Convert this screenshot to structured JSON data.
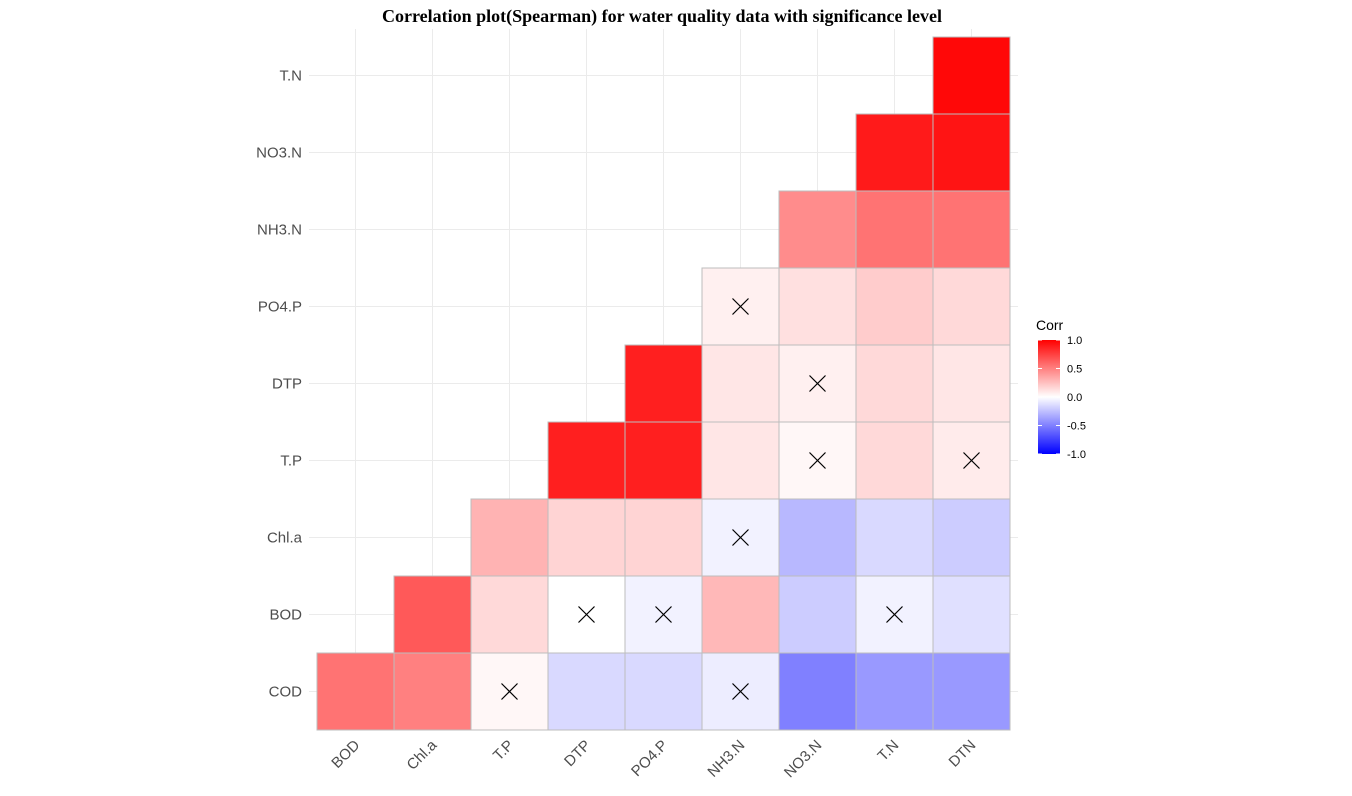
{
  "chart_data": {
    "type": "heatmap",
    "title": "Correlation plot(Spearman) for water quality data with significance level",
    "x_categories": [
      "BOD",
      "Chl.a",
      "T.P",
      "DTP",
      "PO4.P",
      "NH3.N",
      "NO3.N",
      "T.N",
      "DTN"
    ],
    "y_categories": [
      "COD",
      "BOD",
      "Chl.a",
      "T.P",
      "DTP",
      "PO4.P",
      "NH3.N",
      "NO3.N",
      "T.N"
    ],
    "cells": [
      {
        "x": "BOD",
        "y": "COD",
        "value": 0.55,
        "insignificant": false
      },
      {
        "x": "Chl.a",
        "y": "COD",
        "value": 0.5,
        "insignificant": false
      },
      {
        "x": "T.P",
        "y": "COD",
        "value": 0.03,
        "insignificant": true
      },
      {
        "x": "DTP",
        "y": "COD",
        "value": -0.15,
        "insignificant": false
      },
      {
        "x": "PO4.P",
        "y": "COD",
        "value": -0.15,
        "insignificant": false
      },
      {
        "x": "NH3.N",
        "y": "COD",
        "value": -0.07,
        "insignificant": true
      },
      {
        "x": "NO3.N",
        "y": "COD",
        "value": -0.5,
        "insignificant": false
      },
      {
        "x": "T.N",
        "y": "COD",
        "value": -0.4,
        "insignificant": false
      },
      {
        "x": "DTN",
        "y": "COD",
        "value": -0.4,
        "insignificant": false
      },
      {
        "x": "Chl.a",
        "y": "BOD",
        "value": 0.65,
        "insignificant": false
      },
      {
        "x": "T.P",
        "y": "BOD",
        "value": 0.15,
        "insignificant": false
      },
      {
        "x": "DTP",
        "y": "BOD",
        "value": 0.0,
        "insignificant": true
      },
      {
        "x": "PO4.P",
        "y": "BOD",
        "value": -0.05,
        "insignificant": true
      },
      {
        "x": "NH3.N",
        "y": "BOD",
        "value": 0.28,
        "insignificant": false
      },
      {
        "x": "NO3.N",
        "y": "BOD",
        "value": -0.2,
        "insignificant": false
      },
      {
        "x": "T.N",
        "y": "BOD",
        "value": -0.05,
        "insignificant": true
      },
      {
        "x": "DTN",
        "y": "BOD",
        "value": -0.12,
        "insignificant": false
      },
      {
        "x": "T.P",
        "y": "Chl.a",
        "value": 0.3,
        "insignificant": false
      },
      {
        "x": "DTP",
        "y": "Chl.a",
        "value": 0.17,
        "insignificant": false
      },
      {
        "x": "PO4.P",
        "y": "Chl.a",
        "value": 0.17,
        "insignificant": false
      },
      {
        "x": "NH3.N",
        "y": "Chl.a",
        "value": -0.05,
        "insignificant": true
      },
      {
        "x": "NO3.N",
        "y": "Chl.a",
        "value": -0.28,
        "insignificant": false
      },
      {
        "x": "T.N",
        "y": "Chl.a",
        "value": -0.15,
        "insignificant": false
      },
      {
        "x": "DTN",
        "y": "Chl.a",
        "value": -0.2,
        "insignificant": false
      },
      {
        "x": "DTP",
        "y": "T.P",
        "value": 0.88,
        "insignificant": false
      },
      {
        "x": "PO4.P",
        "y": "T.P",
        "value": 0.88,
        "insignificant": false
      },
      {
        "x": "NH3.N",
        "y": "T.P",
        "value": 0.1,
        "insignificant": false
      },
      {
        "x": "NO3.N",
        "y": "T.P",
        "value": 0.03,
        "insignificant": true
      },
      {
        "x": "T.N",
        "y": "T.P",
        "value": 0.15,
        "insignificant": false
      },
      {
        "x": "DTN",
        "y": "T.P",
        "value": 0.08,
        "insignificant": true
      },
      {
        "x": "PO4.P",
        "y": "DTP",
        "value": 0.88,
        "insignificant": false
      },
      {
        "x": "NH3.N",
        "y": "DTP",
        "value": 0.1,
        "insignificant": false
      },
      {
        "x": "NO3.N",
        "y": "DTP",
        "value": 0.06,
        "insignificant": true
      },
      {
        "x": "T.N",
        "y": "DTP",
        "value": 0.15,
        "insignificant": false
      },
      {
        "x": "DTN",
        "y": "DTP",
        "value": 0.1,
        "insignificant": false
      },
      {
        "x": "NH3.N",
        "y": "PO4.P",
        "value": 0.06,
        "insignificant": true
      },
      {
        "x": "NO3.N",
        "y": "PO4.P",
        "value": 0.12,
        "insignificant": false
      },
      {
        "x": "T.N",
        "y": "PO4.P",
        "value": 0.2,
        "insignificant": false
      },
      {
        "x": "DTN",
        "y": "PO4.P",
        "value": 0.15,
        "insignificant": false
      },
      {
        "x": "NO3.N",
        "y": "NH3.N",
        "value": 0.45,
        "insignificant": false
      },
      {
        "x": "T.N",
        "y": "NH3.N",
        "value": 0.55,
        "insignificant": false
      },
      {
        "x": "DTN",
        "y": "NH3.N",
        "value": 0.55,
        "insignificant": false
      },
      {
        "x": "T.N",
        "y": "NO3.N",
        "value": 0.9,
        "insignificant": false
      },
      {
        "x": "DTN",
        "y": "NO3.N",
        "value": 0.92,
        "insignificant": false
      },
      {
        "x": "DTN",
        "y": "T.N",
        "value": 0.97,
        "insignificant": false
      }
    ],
    "legend": {
      "title": "Corr",
      "range": [
        -1.0,
        1.0
      ],
      "ticks": [
        "1.0",
        "0.5",
        "0.0",
        "-0.5",
        "-1.0"
      ],
      "colors": {
        "low": "#0000ff",
        "mid": "#ffffff",
        "high": "#ff0000"
      },
      "placement": "right"
    },
    "grid": true
  }
}
